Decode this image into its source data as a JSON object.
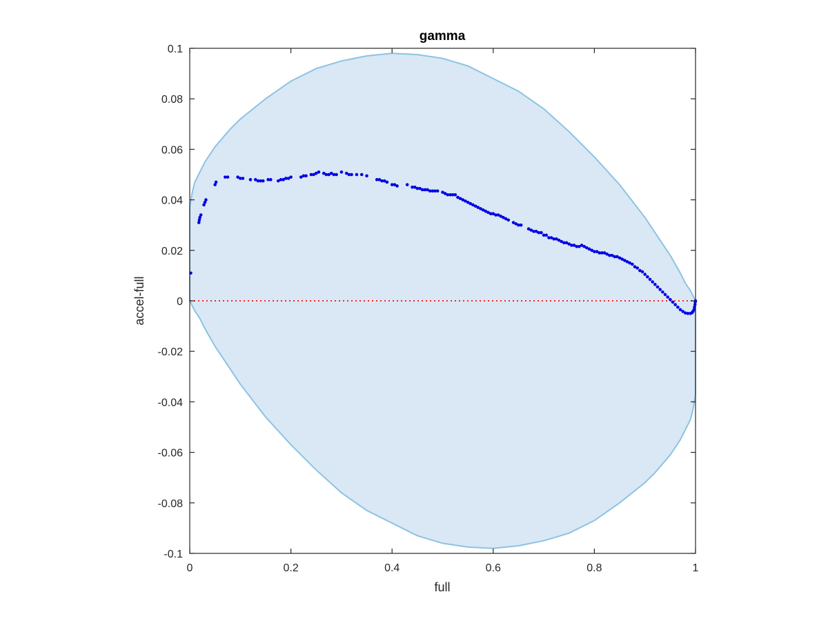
{
  "chart_data": {
    "type": "scatter",
    "title": "gamma",
    "xlabel": "full",
    "ylabel": "accel-full",
    "xlim": [
      0,
      1
    ],
    "ylim": [
      -0.1,
      0.1
    ],
    "xticks": [
      0,
      0.2,
      0.4,
      0.6,
      0.8,
      1
    ],
    "xtick_labels": [
      "0",
      "0.2",
      "0.4",
      "0.6",
      "0.8",
      "1"
    ],
    "yticks": [
      0.1,
      0.08,
      0.06,
      0.04,
      0.02,
      0,
      -0.02,
      -0.04,
      -0.06,
      -0.08,
      -0.1
    ],
    "ytick_labels": [
      "0.1",
      "0.08",
      "0.06",
      "0.04",
      "0.02",
      "0",
      "-0.02",
      "-0.04",
      "-0.06",
      "-0.08",
      "-0.1"
    ],
    "grid": false,
    "colors": {
      "points": "#0000e6",
      "region_fill": "#d9e8f4",
      "region_edge": "#8cc2e3",
      "zero_line": "#ff2020",
      "axis": "#262626"
    },
    "reference_line": {
      "y": 0,
      "style": "dotted"
    },
    "region_upper": [
      [
        0,
        0.037
      ],
      [
        0.005,
        0.043
      ],
      [
        0.01,
        0.047
      ],
      [
        0.02,
        0.051
      ],
      [
        0.03,
        0.055
      ],
      [
        0.05,
        0.061
      ],
      [
        0.08,
        0.068
      ],
      [
        0.1,
        0.072
      ],
      [
        0.15,
        0.08
      ],
      [
        0.2,
        0.087
      ],
      [
        0.25,
        0.092
      ],
      [
        0.3,
        0.095
      ],
      [
        0.35,
        0.097
      ],
      [
        0.4,
        0.098
      ],
      [
        0.45,
        0.0975
      ],
      [
        0.5,
        0.096
      ],
      [
        0.55,
        0.093
      ],
      [
        0.6,
        0.088
      ],
      [
        0.65,
        0.083
      ],
      [
        0.7,
        0.076
      ],
      [
        0.75,
        0.067
      ],
      [
        0.8,
        0.057
      ],
      [
        0.85,
        0.046
      ],
      [
        0.9,
        0.033
      ],
      [
        0.93,
        0.024
      ],
      [
        0.95,
        0.018
      ],
      [
        0.97,
        0.011
      ],
      [
        0.98,
        0.007
      ],
      [
        0.99,
        0.004
      ],
      [
        1.0,
        0.0
      ]
    ],
    "region_lower": [
      [
        0,
        0.0
      ],
      [
        0.01,
        -0.004
      ],
      [
        0.02,
        -0.007
      ],
      [
        0.03,
        -0.011
      ],
      [
        0.05,
        -0.018
      ],
      [
        0.07,
        -0.024
      ],
      [
        0.1,
        -0.033
      ],
      [
        0.15,
        -0.046
      ],
      [
        0.2,
        -0.057
      ],
      [
        0.25,
        -0.067
      ],
      [
        0.3,
        -0.076
      ],
      [
        0.35,
        -0.083
      ],
      [
        0.4,
        -0.088
      ],
      [
        0.45,
        -0.093
      ],
      [
        0.5,
        -0.096
      ],
      [
        0.55,
        -0.0975
      ],
      [
        0.6,
        -0.098
      ],
      [
        0.65,
        -0.097
      ],
      [
        0.7,
        -0.095
      ],
      [
        0.75,
        -0.092
      ],
      [
        0.8,
        -0.087
      ],
      [
        0.85,
        -0.08
      ],
      [
        0.9,
        -0.072
      ],
      [
        0.92,
        -0.068
      ],
      [
        0.95,
        -0.061
      ],
      [
        0.97,
        -0.055
      ],
      [
        0.98,
        -0.051
      ],
      [
        0.99,
        -0.047
      ],
      [
        0.995,
        -0.043
      ],
      [
        1.0,
        -0.037
      ]
    ],
    "points": [
      [
        0.002,
        0.011
      ],
      [
        0.018,
        0.031
      ],
      [
        0.019,
        0.032
      ],
      [
        0.02,
        0.033
      ],
      [
        0.022,
        0.034
      ],
      [
        0.028,
        0.038
      ],
      [
        0.03,
        0.039
      ],
      [
        0.032,
        0.04
      ],
      [
        0.05,
        0.046
      ],
      [
        0.052,
        0.047
      ],
      [
        0.07,
        0.049
      ],
      [
        0.075,
        0.049
      ],
      [
        0.095,
        0.049
      ],
      [
        0.1,
        0.0485
      ],
      [
        0.105,
        0.0485
      ],
      [
        0.12,
        0.048
      ],
      [
        0.13,
        0.048
      ],
      [
        0.135,
        0.0475
      ],
      [
        0.14,
        0.0475
      ],
      [
        0.145,
        0.0475
      ],
      [
        0.155,
        0.048
      ],
      [
        0.16,
        0.048
      ],
      [
        0.175,
        0.0475
      ],
      [
        0.18,
        0.048
      ],
      [
        0.185,
        0.048
      ],
      [
        0.19,
        0.0485
      ],
      [
        0.195,
        0.0485
      ],
      [
        0.2,
        0.049
      ],
      [
        0.22,
        0.049
      ],
      [
        0.225,
        0.0495
      ],
      [
        0.23,
        0.0495
      ],
      [
        0.24,
        0.05
      ],
      [
        0.245,
        0.05
      ],
      [
        0.25,
        0.0505
      ],
      [
        0.255,
        0.051
      ],
      [
        0.265,
        0.0505
      ],
      [
        0.27,
        0.05
      ],
      [
        0.275,
        0.05
      ],
      [
        0.28,
        0.0505
      ],
      [
        0.285,
        0.05
      ],
      [
        0.29,
        0.05
      ],
      [
        0.3,
        0.051
      ],
      [
        0.31,
        0.0505
      ],
      [
        0.315,
        0.05
      ],
      [
        0.32,
        0.05
      ],
      [
        0.33,
        0.05
      ],
      [
        0.34,
        0.05
      ],
      [
        0.35,
        0.0495
      ],
      [
        0.37,
        0.048
      ],
      [
        0.375,
        0.048
      ],
      [
        0.38,
        0.0475
      ],
      [
        0.385,
        0.0475
      ],
      [
        0.39,
        0.047
      ],
      [
        0.4,
        0.046
      ],
      [
        0.405,
        0.046
      ],
      [
        0.41,
        0.0455
      ],
      [
        0.43,
        0.046
      ],
      [
        0.44,
        0.045
      ],
      [
        0.445,
        0.045
      ],
      [
        0.45,
        0.0445
      ],
      [
        0.455,
        0.0445
      ],
      [
        0.46,
        0.044
      ],
      [
        0.465,
        0.044
      ],
      [
        0.47,
        0.044
      ],
      [
        0.475,
        0.0435
      ],
      [
        0.48,
        0.0435
      ],
      [
        0.485,
        0.0435
      ],
      [
        0.49,
        0.0435
      ],
      [
        0.5,
        0.043
      ],
      [
        0.505,
        0.0425
      ],
      [
        0.51,
        0.042
      ],
      [
        0.515,
        0.042
      ],
      [
        0.52,
        0.042
      ],
      [
        0.525,
        0.042
      ],
      [
        0.53,
        0.041
      ],
      [
        0.535,
        0.0405
      ],
      [
        0.54,
        0.04
      ],
      [
        0.545,
        0.0395
      ],
      [
        0.55,
        0.039
      ],
      [
        0.555,
        0.0385
      ],
      [
        0.56,
        0.038
      ],
      [
        0.565,
        0.0375
      ],
      [
        0.57,
        0.037
      ],
      [
        0.575,
        0.0365
      ],
      [
        0.58,
        0.036
      ],
      [
        0.585,
        0.0355
      ],
      [
        0.59,
        0.035
      ],
      [
        0.595,
        0.0345
      ],
      [
        0.6,
        0.0345
      ],
      [
        0.605,
        0.034
      ],
      [
        0.61,
        0.034
      ],
      [
        0.615,
        0.0335
      ],
      [
        0.62,
        0.033
      ],
      [
        0.625,
        0.0325
      ],
      [
        0.63,
        0.032
      ],
      [
        0.64,
        0.031
      ],
      [
        0.645,
        0.0305
      ],
      [
        0.65,
        0.03
      ],
      [
        0.655,
        0.03
      ],
      [
        0.67,
        0.0285
      ],
      [
        0.675,
        0.028
      ],
      [
        0.68,
        0.0275
      ],
      [
        0.685,
        0.0275
      ],
      [
        0.69,
        0.027
      ],
      [
        0.695,
        0.027
      ],
      [
        0.7,
        0.026
      ],
      [
        0.705,
        0.026
      ],
      [
        0.71,
        0.025
      ],
      [
        0.715,
        0.025
      ],
      [
        0.72,
        0.0245
      ],
      [
        0.725,
        0.0245
      ],
      [
        0.73,
        0.024
      ],
      [
        0.735,
        0.0235
      ],
      [
        0.74,
        0.023
      ],
      [
        0.745,
        0.023
      ],
      [
        0.75,
        0.0225
      ],
      [
        0.755,
        0.022
      ],
      [
        0.76,
        0.022
      ],
      [
        0.765,
        0.0215
      ],
      [
        0.77,
        0.0215
      ],
      [
        0.775,
        0.022
      ],
      [
        0.78,
        0.0215
      ],
      [
        0.785,
        0.021
      ],
      [
        0.79,
        0.0205
      ],
      [
        0.795,
        0.02
      ],
      [
        0.8,
        0.0195
      ],
      [
        0.805,
        0.0195
      ],
      [
        0.81,
        0.019
      ],
      [
        0.815,
        0.019
      ],
      [
        0.82,
        0.019
      ],
      [
        0.825,
        0.0185
      ],
      [
        0.83,
        0.018
      ],
      [
        0.835,
        0.018
      ],
      [
        0.84,
        0.0175
      ],
      [
        0.845,
        0.0175
      ],
      [
        0.85,
        0.017
      ],
      [
        0.855,
        0.0165
      ],
      [
        0.86,
        0.016
      ],
      [
        0.865,
        0.0155
      ],
      [
        0.87,
        0.015
      ],
      [
        0.875,
        0.0145
      ],
      [
        0.88,
        0.0135
      ],
      [
        0.885,
        0.013
      ],
      [
        0.89,
        0.012
      ],
      [
        0.895,
        0.0115
      ],
      [
        0.9,
        0.0105
      ],
      [
        0.905,
        0.0095
      ],
      [
        0.91,
        0.0085
      ],
      [
        0.915,
        0.0075
      ],
      [
        0.92,
        0.0065
      ],
      [
        0.925,
        0.0055
      ],
      [
        0.93,
        0.0045
      ],
      [
        0.935,
        0.0035
      ],
      [
        0.94,
        0.0025
      ],
      [
        0.945,
        0.0015
      ],
      [
        0.95,
        0.0005
      ],
      [
        0.955,
        -0.0005
      ],
      [
        0.96,
        -0.0015
      ],
      [
        0.965,
        -0.0025
      ],
      [
        0.97,
        -0.0035
      ],
      [
        0.975,
        -0.0042
      ],
      [
        0.98,
        -0.0048
      ],
      [
        0.985,
        -0.005
      ],
      [
        0.99,
        -0.005
      ],
      [
        0.993,
        -0.0047
      ],
      [
        0.995,
        -0.0042
      ],
      [
        0.997,
        -0.0035
      ],
      [
        0.998,
        -0.0025
      ],
      [
        0.999,
        -0.0015
      ],
      [
        0.9995,
        -0.0005
      ],
      [
        1.0,
        0.0
      ]
    ]
  }
}
